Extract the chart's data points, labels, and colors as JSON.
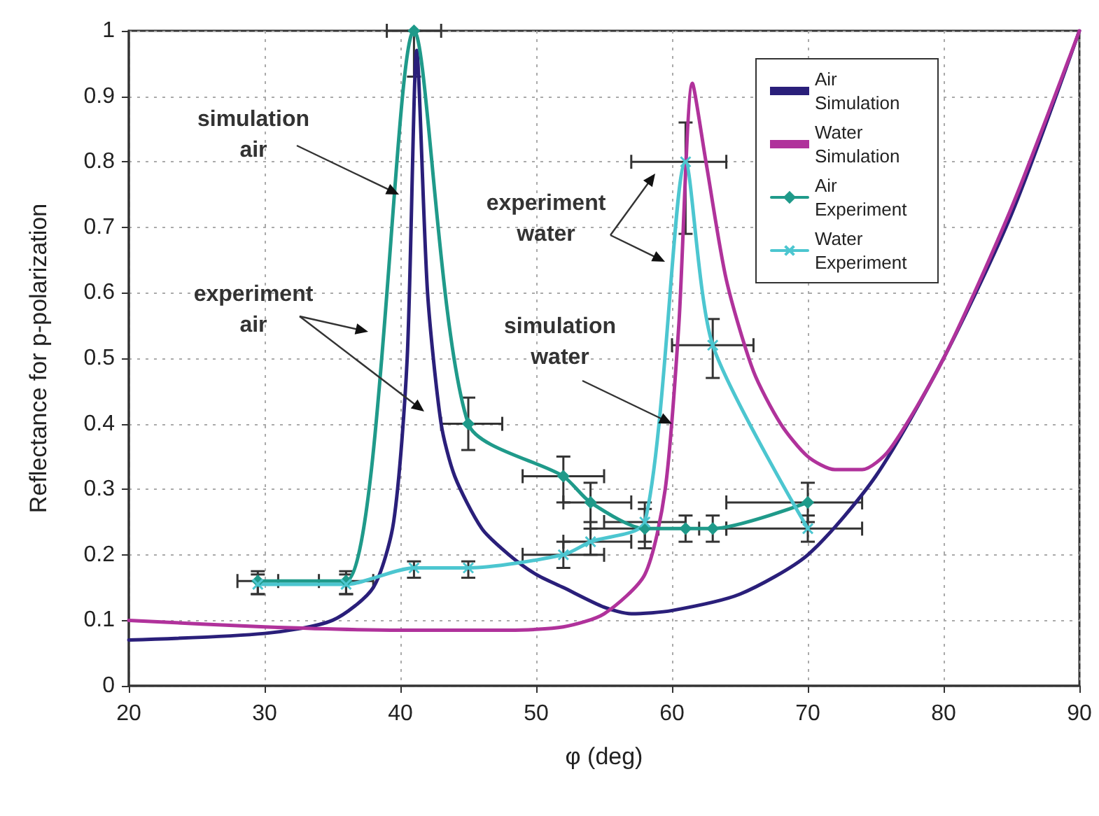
{
  "chart_data": {
    "type": "line",
    "xlabel": "φ (deg)",
    "ylabel": "Reflectance for p-polarization",
    "xlim": [
      20,
      90
    ],
    "xticks": [
      20,
      30,
      40,
      50,
      60,
      70,
      80,
      90
    ],
    "ylim": [
      0,
      1
    ],
    "yticks": [
      0,
      0.1,
      0.2,
      0.3,
      0.4,
      0.5,
      0.6,
      0.7,
      0.8,
      0.9,
      1
    ],
    "grid": true,
    "legend": "top right",
    "line_style": "solid",
    "series": [
      {
        "name": "Air Simulation",
        "color": "#2a1f7a",
        "marker": "none",
        "x": [
          20,
          30,
          35,
          38,
          39.5,
          40.5,
          41.2,
          42,
          43,
          44,
          46,
          48,
          50,
          52,
          55,
          57,
          60,
          65,
          70,
          75,
          80,
          85,
          90
        ],
        "values": [
          0.07,
          0.08,
          0.1,
          0.15,
          0.25,
          0.5,
          0.97,
          0.6,
          0.4,
          0.32,
          0.24,
          0.2,
          0.17,
          0.15,
          0.12,
          0.11,
          0.115,
          0.14,
          0.2,
          0.32,
          0.5,
          0.72,
          1.0
        ]
      },
      {
        "name": "Water Simulation",
        "color": "#b0329b",
        "marker": "none",
        "x": [
          20,
          30,
          40,
          48,
          52,
          55,
          58,
          59.5,
          60.5,
          61.5,
          62.5,
          64,
          66,
          68,
          70,
          72,
          74,
          76,
          80,
          85,
          90
        ],
        "values": [
          0.1,
          0.09,
          0.085,
          0.085,
          0.09,
          0.11,
          0.17,
          0.3,
          0.55,
          0.92,
          0.8,
          0.62,
          0.48,
          0.4,
          0.35,
          0.33,
          0.33,
          0.36,
          0.5,
          0.73,
          1.0
        ]
      },
      {
        "name": "Air Experiment",
        "color": "#1f9a8a",
        "marker": "diamond",
        "x": [
          29.5,
          36,
          41,
          45,
          52,
          54,
          58,
          61,
          63,
          70
        ],
        "values": [
          0.16,
          0.16,
          1.0,
          0.4,
          0.32,
          0.28,
          0.24,
          0.24,
          0.24,
          0.28
        ],
        "errors": [
          [
            0.14,
            0.175
          ],
          [
            0.14,
            0.175
          ],
          [
            0.93,
            1.0
          ],
          [
            0.36,
            0.44
          ],
          [
            0.28,
            0.35
          ],
          [
            0.25,
            0.31
          ],
          [
            0.21,
            0.27
          ],
          0.02,
          0.02,
          [
            0.25,
            0.31
          ]
        ],
        "xerrors": [
          [
            28,
            31
          ],
          [
            34,
            38
          ],
          [
            39,
            43
          ],
          [
            43,
            47.5
          ],
          [
            49,
            55
          ],
          [
            52,
            57
          ],
          [
            54,
            62
          ],
          [
            59,
            64
          ],
          null,
          [
            64,
            74
          ]
        ]
      },
      {
        "name": "Water Experiment",
        "color": "#4cc6d0",
        "marker": "cross",
        "x": [
          29.5,
          36,
          41,
          45,
          52,
          54,
          58,
          61,
          63,
          70
        ],
        "values": [
          0.155,
          0.155,
          0.18,
          0.18,
          0.2,
          0.22,
          0.25,
          0.8,
          0.52,
          0.24
        ],
        "errors": [
          [
            0.14,
            0.17
          ],
          [
            0.14,
            0.17
          ],
          [
            0.165,
            0.19
          ],
          [
            0.165,
            0.19
          ],
          [
            0.18,
            0.22
          ],
          [
            0.2,
            0.24
          ],
          [
            0.22,
            0.28
          ],
          [
            0.69,
            0.86
          ],
          [
            0.47,
            0.56
          ],
          [
            0.22,
            0.26
          ]
        ],
        "xerrors": [
          null,
          null,
          null,
          null,
          [
            49,
            55
          ],
          [
            52,
            57
          ],
          [
            55,
            61
          ],
          [
            57,
            64
          ],
          [
            60,
            66
          ],
          [
            64,
            74
          ]
        ]
      }
    ],
    "annotations": [
      {
        "text": "simulation air",
        "x": 39.9,
        "y": 0.75
      },
      "experiment air",
      "experiment water",
      {
        "text": "simulation water",
        "x": 60,
        "y": 0.4
      }
    ]
  }
}
